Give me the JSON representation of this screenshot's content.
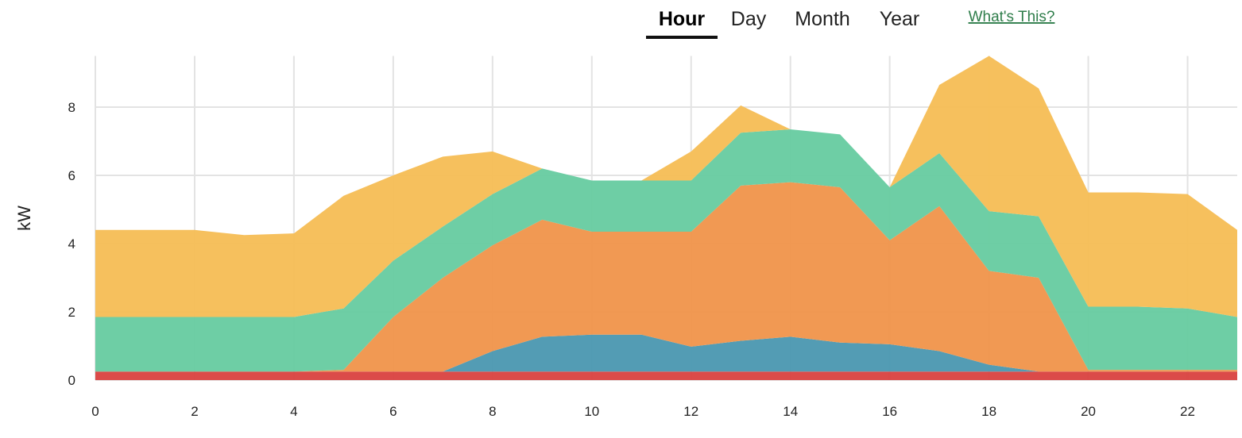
{
  "tabs": [
    "Hour",
    "Day",
    "Month",
    "Year"
  ],
  "active_tab": 0,
  "help_link": "What's This?",
  "chart_data": {
    "type": "stacked-area",
    "y_label": "kW",
    "x": [
      0,
      1,
      2,
      3,
      4,
      5,
      6,
      7,
      8,
      9,
      10,
      11,
      12,
      13,
      14,
      15,
      16,
      17,
      18,
      19,
      20,
      21,
      22,
      23
    ],
    "xlim": [
      0,
      23
    ],
    "xticks": [
      0,
      2,
      4,
      6,
      8,
      10,
      12,
      14,
      16,
      18,
      20,
      22
    ],
    "ylim": [
      0,
      9.5
    ],
    "yticks": [
      0,
      2,
      4,
      6,
      8
    ],
    "grid": true,
    "series": [
      {
        "color": "#d9413f",
        "values": [
          0.25,
          0.25,
          0.25,
          0.25,
          0.25,
          0.25,
          0.25,
          0.25,
          0.25,
          0.25,
          0.25,
          0.25,
          0.25,
          0.25,
          0.25,
          0.25,
          0.25,
          0.25,
          0.25,
          0.25,
          0.25,
          0.25,
          0.25,
          0.25
        ]
      },
      {
        "color": "#4a97b0",
        "values": [
          0,
          0,
          0,
          0,
          0,
          0,
          0,
          0,
          0.6,
          1.02,
          1.08,
          1.08,
          0.73,
          0.9,
          1.02,
          0.85,
          0.8,
          0.6,
          0.2,
          0,
          0,
          0,
          0,
          0
        ]
      },
      {
        "color": "#f0944a",
        "values": [
          0,
          0,
          0,
          0,
          0,
          0.05,
          1.6,
          2.75,
          3.1,
          3.43,
          3.02,
          3.02,
          3.37,
          4.55,
          4.53,
          4.55,
          3.05,
          4.25,
          2.75,
          2.75,
          0.05,
          0.05,
          0.05,
          0.05
        ]
      },
      {
        "color": "#66cba0",
        "values": [
          1.6,
          1.6,
          1.6,
          1.6,
          1.6,
          1.8,
          1.65,
          1.5,
          1.5,
          1.5,
          1.5,
          1.5,
          1.5,
          1.55,
          1.55,
          1.55,
          1.55,
          1.55,
          1.75,
          1.8,
          1.85,
          1.85,
          1.8,
          1.55
        ]
      },
      {
        "color": "#f6bd54",
        "values": [
          2.55,
          2.55,
          2.55,
          2.4,
          2.45,
          3.3,
          2.5,
          2.05,
          1.25,
          0,
          0,
          0,
          0.85,
          0.8,
          0,
          0,
          0,
          2.0,
          4.55,
          3.75,
          3.35,
          3.35,
          3.35,
          2.55
        ]
      }
    ]
  }
}
